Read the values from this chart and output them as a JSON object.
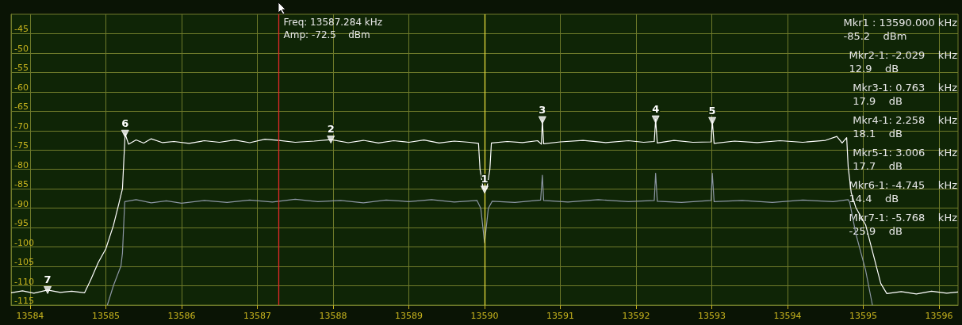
{
  "chart_data": {
    "type": "line",
    "xlim": [
      13583.75,
      13596.25
    ],
    "xticks": [
      13584,
      13585,
      13586,
      13587,
      13588,
      13589,
      13590,
      13591,
      13592,
      13593,
      13594,
      13595,
      13596
    ],
    "ylim": [
      -115,
      -40
    ],
    "yticks": [
      -115,
      -110,
      -105,
      -100,
      -95,
      -90,
      -85,
      -80,
      -75,
      -70,
      -65,
      -60,
      -55,
      -50,
      -45
    ],
    "grid": true,
    "marker": "none",
    "series": [
      {
        "color": "#8c96a4",
        "x": [
          13585.02,
          13585.1,
          13585.2,
          13585.22,
          13585.25,
          13585.4,
          13585.6,
          13585.8,
          13586.0,
          13586.3,
          13586.6,
          13586.9,
          13587.2,
          13587.5,
          13587.8,
          13588.1,
          13588.4,
          13588.7,
          13589.0,
          13589.3,
          13589.6,
          13589.9,
          13589.95,
          13590.0,
          13590.05,
          13590.1,
          13590.4,
          13590.74,
          13590.763,
          13590.78,
          13591.1,
          13591.5,
          13591.9,
          13592.24,
          13592.258,
          13592.28,
          13592.6,
          13592.99,
          13593.006,
          13593.03,
          13593.4,
          13593.8,
          13594.2,
          13594.6,
          13594.8,
          13594.82,
          13594.9,
          13595.03,
          13595.12
        ],
        "values": [
          -115,
          -110,
          -104.9,
          -101.6,
          -88.3,
          -87.8,
          -88.6,
          -88.1,
          -88.7,
          -88.0,
          -88.5,
          -87.9,
          -88.4,
          -87.7,
          -88.3,
          -88.0,
          -88.6,
          -87.9,
          -88.3,
          -87.8,
          -88.4,
          -88.0,
          -90,
          -98.9,
          -90,
          -88.2,
          -88.5,
          -87.9,
          -81.5,
          -88.0,
          -88.4,
          -87.8,
          -88.3,
          -88.0,
          -81,
          -88.2,
          -88.5,
          -88.0,
          -81,
          -88.3,
          -88.0,
          -88.5,
          -87.9,
          -88.3,
          -87.8,
          -88.5,
          -96.5,
          -106,
          -115
        ]
      },
      {
        "color": "#ffffff",
        "x": [
          13583.75,
          13583.9,
          13584.05,
          13584.232,
          13584.4,
          13584.55,
          13584.72,
          13584.8,
          13584.9,
          13585.0,
          13585.1,
          13585.17,
          13585.22,
          13585.255,
          13585.3,
          13585.4,
          13585.5,
          13585.6,
          13585.75,
          13585.9,
          13586.1,
          13586.3,
          13586.5,
          13586.7,
          13586.9,
          13587.1,
          13587.284,
          13587.5,
          13587.75,
          13587.971,
          13588.2,
          13588.4,
          13588.6,
          13588.8,
          13589.0,
          13589.2,
          13589.4,
          13589.6,
          13589.8,
          13589.92,
          13589.94,
          13589.98,
          13590.0,
          13590.03,
          13590.07,
          13590.09,
          13590.3,
          13590.5,
          13590.7,
          13590.75,
          13590.763,
          13590.78,
          13591.0,
          13591.3,
          13591.6,
          13591.9,
          13592.1,
          13592.24,
          13592.258,
          13592.28,
          13592.5,
          13592.75,
          13592.99,
          13593.006,
          13593.03,
          13593.3,
          13593.6,
          13593.9,
          13594.2,
          13594.5,
          13594.65,
          13594.72,
          13594.78,
          13594.8,
          13594.84,
          13594.9,
          13595.03,
          13595.23,
          13595.31,
          13595.5,
          13595.7,
          13595.9,
          13596.1,
          13596.25
        ],
        "values": [
          -111.8,
          -111.3,
          -111.9,
          -111.1,
          -111.7,
          -111.4,
          -111.8,
          -108.5,
          -104,
          -100.5,
          -94.5,
          -89,
          -85,
          -70.8,
          -73.5,
          -72.4,
          -73.2,
          -72.1,
          -73.1,
          -72.8,
          -73.3,
          -72.6,
          -73.0,
          -72.4,
          -73.1,
          -72.2,
          -72.5,
          -73.0,
          -72.7,
          -72.3,
          -73.1,
          -72.5,
          -73.2,
          -72.6,
          -73.0,
          -72.4,
          -73.2,
          -72.7,
          -73.0,
          -73.3,
          -80,
          -84.8,
          -85.2,
          -84.9,
          -80,
          -73.2,
          -72.8,
          -73.1,
          -72.6,
          -73.5,
          -67.3,
          -73.4,
          -72.9,
          -72.5,
          -73.1,
          -72.6,
          -73.0,
          -72.8,
          -67.1,
          -73.2,
          -72.5,
          -73.0,
          -72.9,
          -67.5,
          -73.3,
          -72.7,
          -73.1,
          -72.6,
          -73.0,
          -72.5,
          -71.5,
          -73.2,
          -71.8,
          -79.4,
          -86,
          -89.8,
          -94.3,
          -109.4,
          -112,
          -111.5,
          -112.1,
          -111.4,
          -111.9,
          -111.6
        ]
      },
      {
        "type": "scatter",
        "marker": "triangle",
        "color": "#ffffff",
        "x": [
          13590,
          13587.971,
          13590.763,
          13592.258,
          13593.006,
          13585.255,
          13584.232
        ],
        "values": [
          -85.2,
          -72.3,
          -67.3,
          -67.1,
          -67.5,
          -70.8,
          -111.1
        ]
      }
    ],
    "ref_lines": [
      {
        "axis": "x",
        "value": 13587.284,
        "label": "Freq: 13587.284 kHz\nAmp: -72.5    dBm",
        "color": "#e02828"
      },
      {
        "axis": "x",
        "value": 13590,
        "color": "#e6dc3c"
      }
    ],
    "annotations": [
      {
        "text": "1",
        "x": 13590,
        "y": -85.2
      },
      {
        "text": "2",
        "x": 13587.971,
        "y": -72.3
      },
      {
        "text": "3",
        "x": 13590.763,
        "y": -67.3
      },
      {
        "text": "4",
        "x": 13592.258,
        "y": -67.1
      },
      {
        "text": "5",
        "x": 13593.006,
        "y": -67.5
      },
      {
        "text": "6",
        "x": 13585.255,
        "y": -70.8
      },
      {
        "text": "7",
        "x": 13584.232,
        "y": -111.1
      },
      "Mkr1 : 13590.000 kHz\n-85.2    dBm",
      "Mkr2-1: -2.029    kHz\n12.9    dB",
      "Mkr3-1: 0.763    kHz\n17.9    dB",
      "Mkr4-1: 2.258    kHz\n18.1    dB",
      "Mkr5-1: 3.006    kHz\n17.7    dB",
      "Mkr6-1: -4.745    kHz\n14.4    dB",
      "Mkr7-1: -5.768    kHz\n-25.9    dB"
    ]
  }
}
